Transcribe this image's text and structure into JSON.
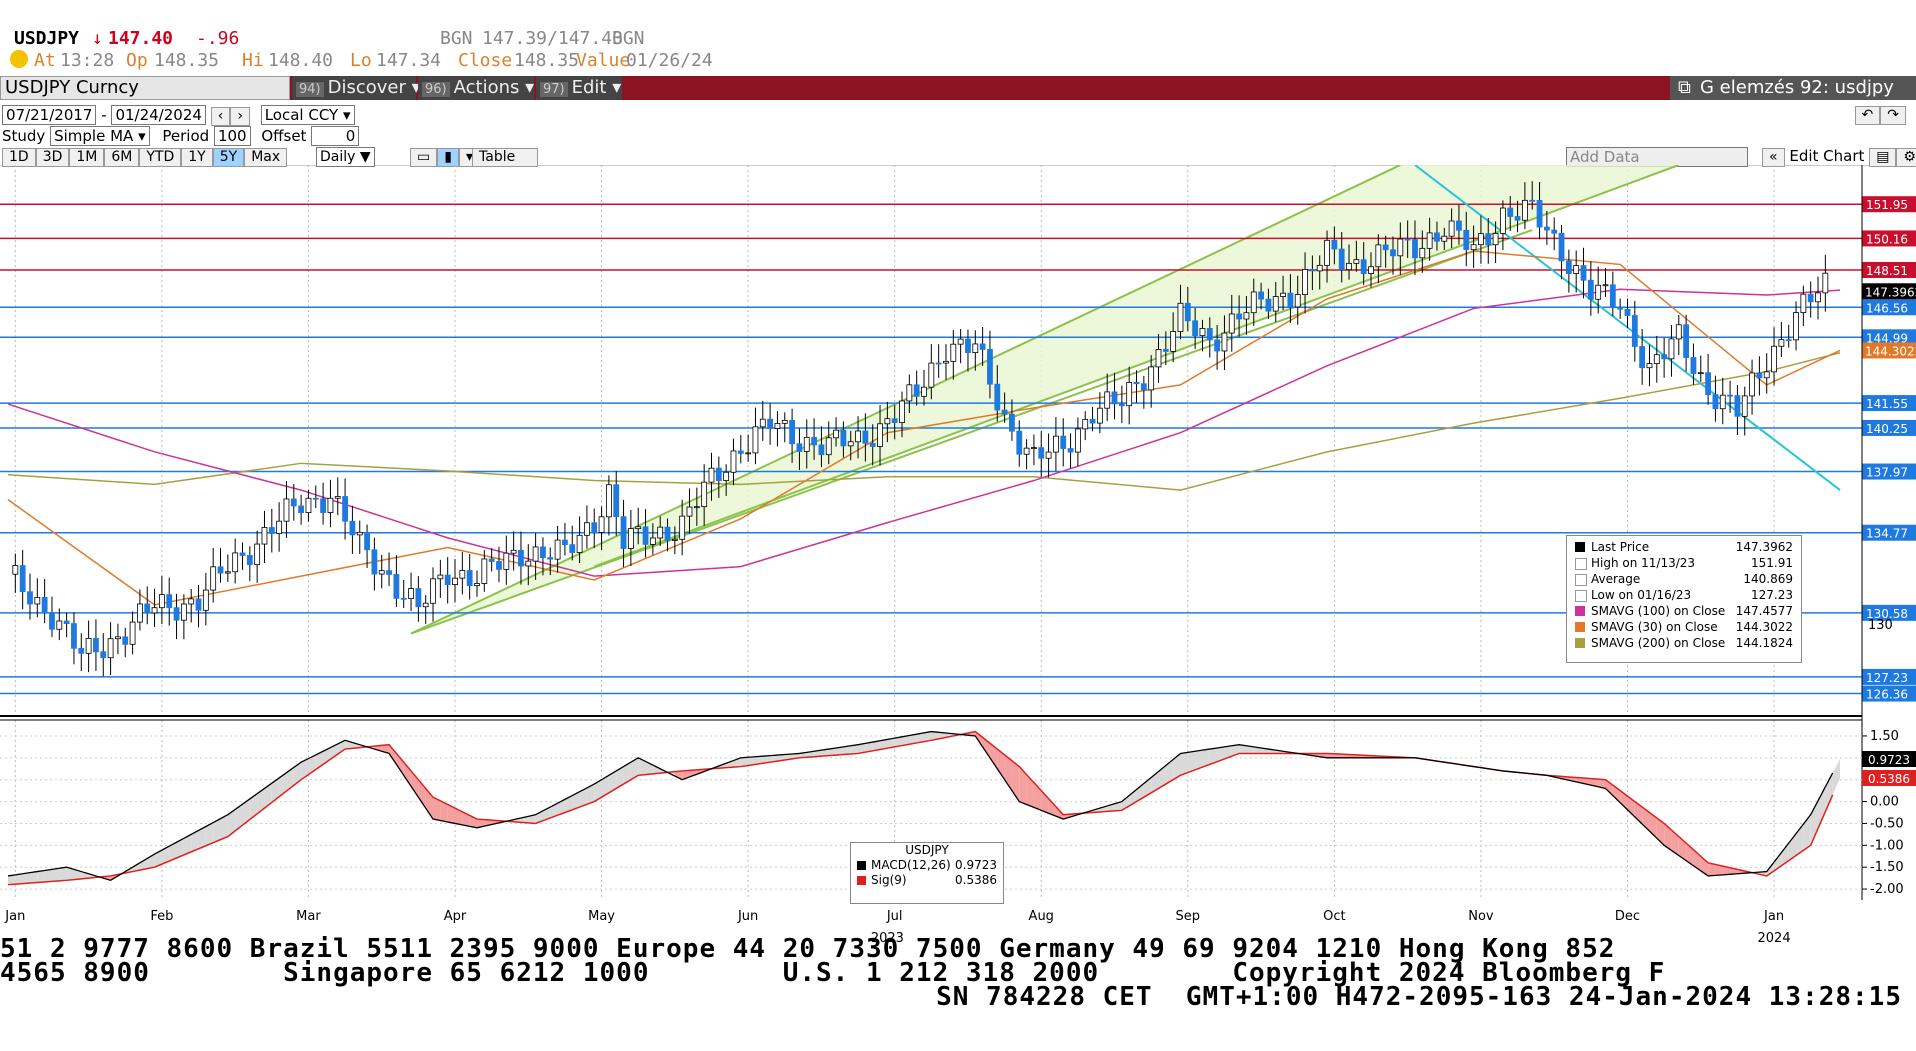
{
  "quote": {
    "ticker": "USDJPY",
    "arrow": "↓",
    "last": "147.40",
    "change": "-.96",
    "source": "BGN",
    "bid_ask": "147.39/147.40",
    "source2": "BGN",
    "at_label": "At",
    "at_time": "13:28",
    "op_label": "Op",
    "op_value": "148.35",
    "hi_label": "Hi",
    "hi_value": "148.40",
    "lo_label": "Lo",
    "lo_value": "147.34",
    "close_label": "Close",
    "close_value": "148.35",
    "value_label": "Value",
    "value_date": "01/26/24"
  },
  "toolbar": {
    "security": "USDJPY Curncy",
    "discover_num": "94)",
    "discover": "Discover",
    "actions_num": "96)",
    "actions": "Actions",
    "edit_num": "97)",
    "edit": "Edit",
    "ga_label": "G elemzés 92: usdjpy"
  },
  "controls": {
    "start_date": "07/21/2017",
    "end_date": "01/24/2024",
    "currency": "Local CCY",
    "study_label": "Study",
    "study_value": "Simple MA",
    "period_label": "Period",
    "period_value": "100",
    "offset_label": "Offset",
    "offset_value": "0",
    "ranges": [
      "1D",
      "3D",
      "1M",
      "6M",
      "YTD",
      "1Y",
      "5Y",
      "Max"
    ],
    "active_range": "5Y",
    "frequency": "Daily",
    "table": "Table",
    "add_data": "Add Data",
    "edit_chart": "Edit Chart"
  },
  "colors": {
    "up_candle": "#ffffff",
    "down_candle": "#1f7ae0",
    "sma100": "#cc3399",
    "sma30": "#e07a2a",
    "sma200": "#a8a040",
    "channel": "#8bc34a",
    "trendline": "#27c4d8",
    "resistance": "#c8102e",
    "support": "#1f7ae0",
    "macd": "#000000",
    "signal": "#e02020"
  },
  "chart_data": [
    {
      "type": "candlestick",
      "title": "USDJPY",
      "x_months": [
        "Jan",
        "Feb",
        "Mar",
        "Apr",
        "May",
        "Jun",
        "Jul",
        "Aug",
        "Sep",
        "Oct",
        "Nov",
        "Dec",
        "Jan"
      ],
      "year_labels": [
        "2023",
        "2024"
      ],
      "y_right_ticks": [
        "130"
      ],
      "horizontal_levels": [
        {
          "value": 151.95,
          "label": "151.95",
          "color": "resistance"
        },
        {
          "value": 150.16,
          "label": "150.16",
          "color": "resistance"
        },
        {
          "value": 148.51,
          "label": "148.51",
          "color": "resistance"
        },
        {
          "value": 146.56,
          "label": "146.56",
          "color": "support"
        },
        {
          "value": 144.99,
          "label": "144.99",
          "color": "support"
        },
        {
          "value": 141.55,
          "label": "141.55",
          "color": "support"
        },
        {
          "value": 140.25,
          "label": "140.25",
          "color": "support"
        },
        {
          "value": 137.97,
          "label": "137.97",
          "color": "support"
        },
        {
          "value": 134.77,
          "label": "134.77",
          "color": "support"
        },
        {
          "value": 130.58,
          "label": "130.58",
          "color": "support"
        },
        {
          "value": 127.23,
          "label": "127.23",
          "color": "support"
        },
        {
          "value": 126.36,
          "label": "126.36",
          "color": "support"
        }
      ],
      "price_tags": [
        {
          "value": 147.3962,
          "label": "147.3962",
          "color": "#000000"
        },
        {
          "value": 144.3022,
          "label": "144.3022",
          "color": "#e07a2a"
        }
      ],
      "series_close": [
        {
          "t": 0,
          "v": 132.6
        },
        {
          "t": 0.3,
          "v": 130.5
        },
        {
          "t": 0.5,
          "v": 128.3
        },
        {
          "t": 0.8,
          "v": 129.6
        },
        {
          "t": 1.0,
          "v": 130.9
        },
        {
          "t": 1.3,
          "v": 131.2
        },
        {
          "t": 1.5,
          "v": 133.0
        },
        {
          "t": 1.8,
          "v": 135.0
        },
        {
          "t": 2.0,
          "v": 136.3
        },
        {
          "t": 2.2,
          "v": 136.8
        },
        {
          "t": 2.4,
          "v": 134.0
        },
        {
          "t": 2.6,
          "v": 132.5
        },
        {
          "t": 2.8,
          "v": 130.7
        },
        {
          "t": 3.0,
          "v": 132.8
        },
        {
          "t": 3.2,
          "v": 132.4
        },
        {
          "t": 3.5,
          "v": 133.8
        },
        {
          "t": 3.8,
          "v": 133.6
        },
        {
          "t": 4.0,
          "v": 135.5
        },
        {
          "t": 4.1,
          "v": 136.9
        },
        {
          "t": 4.2,
          "v": 134.2
        },
        {
          "t": 4.4,
          "v": 134.7
        },
        {
          "t": 4.6,
          "v": 135.2
        },
        {
          "t": 4.8,
          "v": 137.5
        },
        {
          "t": 5.0,
          "v": 139.3
        },
        {
          "t": 5.2,
          "v": 140.4
        },
        {
          "t": 5.4,
          "v": 139.7
        },
        {
          "t": 5.6,
          "v": 139.3
        },
        {
          "t": 5.8,
          "v": 139.6
        },
        {
          "t": 6.0,
          "v": 140.6
        },
        {
          "t": 6.2,
          "v": 142.0
        },
        {
          "t": 6.4,
          "v": 144.6
        },
        {
          "t": 6.6,
          "v": 144.4
        },
        {
          "t": 6.8,
          "v": 140.8
        },
        {
          "t": 7.0,
          "v": 138.6
        },
        {
          "t": 7.2,
          "v": 139.2
        },
        {
          "t": 7.4,
          "v": 141.2
        },
        {
          "t": 7.6,
          "v": 141.5
        },
        {
          "t": 7.8,
          "v": 143.6
        },
        {
          "t": 8.0,
          "v": 145.9
        },
        {
          "t": 8.2,
          "v": 144.8
        },
        {
          "t": 8.4,
          "v": 146.2
        },
        {
          "t": 8.6,
          "v": 146.8
        },
        {
          "t": 8.8,
          "v": 147.6
        },
        {
          "t": 9.0,
          "v": 149.3
        },
        {
          "t": 9.2,
          "v": 148.9
        },
        {
          "t": 9.4,
          "v": 149.3
        },
        {
          "t": 9.6,
          "v": 149.8
        },
        {
          "t": 9.8,
          "v": 150.7
        },
        {
          "t": 10.0,
          "v": 149.5
        },
        {
          "t": 10.2,
          "v": 151.5
        },
        {
          "t": 10.4,
          "v": 151.5
        },
        {
          "t": 10.6,
          "v": 149.6
        },
        {
          "t": 10.8,
          "v": 147.3
        },
        {
          "t": 11.0,
          "v": 146.7
        },
        {
          "t": 11.2,
          "v": 143.3
        },
        {
          "t": 11.4,
          "v": 144.9
        },
        {
          "t": 11.6,
          "v": 142.3
        },
        {
          "t": 11.8,
          "v": 141.0
        },
        {
          "t": 12.0,
          "v": 143.9
        },
        {
          "t": 12.2,
          "v": 146.0
        },
        {
          "t": 12.4,
          "v": 147.8
        },
        {
          "t": 12.5,
          "v": 147.4
        }
      ],
      "sma100": [
        {
          "t": 0,
          "v": 141.5
        },
        {
          "t": 1.0,
          "v": 139.0
        },
        {
          "t": 2.0,
          "v": 137.0
        },
        {
          "t": 3.0,
          "v": 134.5
        },
        {
          "t": 4.0,
          "v": 132.5
        },
        {
          "t": 5.0,
          "v": 133.0
        },
        {
          "t": 6.0,
          "v": 135.3
        },
        {
          "t": 7.0,
          "v": 137.5
        },
        {
          "t": 8.0,
          "v": 140.0
        },
        {
          "t": 9.0,
          "v": 143.5
        },
        {
          "t": 10.0,
          "v": 146.5
        },
        {
          "t": 11.0,
          "v": 147.5
        },
        {
          "t": 12.0,
          "v": 147.2
        },
        {
          "t": 12.5,
          "v": 147.4577
        }
      ],
      "sma30": [
        {
          "t": 0,
          "v": 136.5
        },
        {
          "t": 1.0,
          "v": 131.0
        },
        {
          "t": 2.0,
          "v": 132.5
        },
        {
          "t": 3.0,
          "v": 134.0
        },
        {
          "t": 4.0,
          "v": 132.3
        },
        {
          "t": 5.0,
          "v": 135.5
        },
        {
          "t": 6.0,
          "v": 140.0
        },
        {
          "t": 7.0,
          "v": 141.3
        },
        {
          "t": 8.0,
          "v": 142.5
        },
        {
          "t": 9.0,
          "v": 147.0
        },
        {
          "t": 10.0,
          "v": 149.5
        },
        {
          "t": 11.0,
          "v": 148.8
        },
        {
          "t": 12.0,
          "v": 142.5
        },
        {
          "t": 12.5,
          "v": 144.3022
        }
      ],
      "sma200": [
        {
          "t": 0,
          "v": 137.8
        },
        {
          "t": 1.0,
          "v": 137.3
        },
        {
          "t": 2.0,
          "v": 138.4
        },
        {
          "t": 3.0,
          "v": 138.0
        },
        {
          "t": 4.0,
          "v": 137.5
        },
        {
          "t": 5.0,
          "v": 137.3
        },
        {
          "t": 6.0,
          "v": 137.7
        },
        {
          "t": 7.0,
          "v": 137.7
        },
        {
          "t": 8.0,
          "v": 137.0
        },
        {
          "t": 9.0,
          "v": 139.0
        },
        {
          "t": 10.0,
          "v": 140.5
        },
        {
          "t": 11.0,
          "v": 141.8
        },
        {
          "t": 12.0,
          "v": 143.2
        },
        {
          "t": 12.5,
          "v": 144.1824
        }
      ],
      "legend": {
        "rows": [
          {
            "label": "Last Price",
            "value": "147.3962",
            "color": "#000000"
          },
          {
            "label": "High on 11/13/23",
            "value": "151.91",
            "color": ""
          },
          {
            "label": "Average",
            "value": "140.869",
            "color": ""
          },
          {
            "label": "Low on 01/16/23",
            "value": "127.23",
            "color": ""
          },
          {
            "label": "SMAVG (100)  on Close",
            "value": "147.4577",
            "color": "#cc3399"
          },
          {
            "label": "SMAVG (30)  on Close",
            "value": "144.3022",
            "color": "#e07a2a"
          },
          {
            "label": "SMAVG (200)  on Close",
            "value": "144.1824",
            "color": "#a8a040"
          }
        ]
      },
      "ylim": [
        125.5,
        154
      ]
    },
    {
      "type": "line",
      "title": "USDJPY",
      "y_ticks": [
        "1.50",
        "1.00",
        "0.50",
        "0.00",
        "-0.50",
        "-1.00",
        "-1.50",
        "-2.00"
      ],
      "ylim": [
        -2.25,
        1.75
      ],
      "series": [
        {
          "name": "MACD(12,26)",
          "last": "0.9723",
          "values": [
            {
              "t": 0,
              "v": -1.7
            },
            {
              "t": 0.4,
              "v": -1.5
            },
            {
              "t": 0.7,
              "v": -1.8
            },
            {
              "t": 1.0,
              "v": -1.2
            },
            {
              "t": 1.5,
              "v": -0.3
            },
            {
              "t": 2.0,
              "v": 0.9
            },
            {
              "t": 2.3,
              "v": 1.4
            },
            {
              "t": 2.6,
              "v": 1.1
            },
            {
              "t": 2.9,
              "v": -0.4
            },
            {
              "t": 3.2,
              "v": -0.6
            },
            {
              "t": 3.6,
              "v": -0.3
            },
            {
              "t": 4.0,
              "v": 0.4
            },
            {
              "t": 4.3,
              "v": 1.0
            },
            {
              "t": 4.6,
              "v": 0.5
            },
            {
              "t": 5.0,
              "v": 1.0
            },
            {
              "t": 5.4,
              "v": 1.1
            },
            {
              "t": 5.8,
              "v": 1.3
            },
            {
              "t": 6.3,
              "v": 1.6
            },
            {
              "t": 6.6,
              "v": 1.5
            },
            {
              "t": 6.9,
              "v": 0.0
            },
            {
              "t": 7.2,
              "v": -0.4
            },
            {
              "t": 7.6,
              "v": 0.0
            },
            {
              "t": 8.0,
              "v": 1.1
            },
            {
              "t": 8.4,
              "v": 1.3
            },
            {
              "t": 9.0,
              "v": 1.0
            },
            {
              "t": 9.6,
              "v": 1.0
            },
            {
              "t": 10.2,
              "v": 0.7
            },
            {
              "t": 10.5,
              "v": 0.6
            },
            {
              "t": 10.9,
              "v": 0.3
            },
            {
              "t": 11.3,
              "v": -1.0
            },
            {
              "t": 11.6,
              "v": -1.7
            },
            {
              "t": 12.0,
              "v": -1.6
            },
            {
              "t": 12.3,
              "v": -0.3
            },
            {
              "t": 12.5,
              "v": 0.9723
            }
          ]
        },
        {
          "name": "Sig(9)",
          "last": "0.5386",
          "values": [
            {
              "t": 0,
              "v": -1.9
            },
            {
              "t": 0.4,
              "v": -1.8
            },
            {
              "t": 0.7,
              "v": -1.7
            },
            {
              "t": 1.0,
              "v": -1.5
            },
            {
              "t": 1.5,
              "v": -0.8
            },
            {
              "t": 2.0,
              "v": 0.5
            },
            {
              "t": 2.3,
              "v": 1.2
            },
            {
              "t": 2.6,
              "v": 1.3
            },
            {
              "t": 2.9,
              "v": 0.1
            },
            {
              "t": 3.2,
              "v": -0.4
            },
            {
              "t": 3.6,
              "v": -0.5
            },
            {
              "t": 4.0,
              "v": 0.0
            },
            {
              "t": 4.3,
              "v": 0.6
            },
            {
              "t": 4.6,
              "v": 0.7
            },
            {
              "t": 5.0,
              "v": 0.8
            },
            {
              "t": 5.4,
              "v": 1.0
            },
            {
              "t": 5.8,
              "v": 1.1
            },
            {
              "t": 6.3,
              "v": 1.4
            },
            {
              "t": 6.6,
              "v": 1.6
            },
            {
              "t": 6.9,
              "v": 0.8
            },
            {
              "t": 7.2,
              "v": -0.3
            },
            {
              "t": 7.6,
              "v": -0.2
            },
            {
              "t": 8.0,
              "v": 0.6
            },
            {
              "t": 8.4,
              "v": 1.1
            },
            {
              "t": 9.0,
              "v": 1.1
            },
            {
              "t": 9.6,
              "v": 1.0
            },
            {
              "t": 10.2,
              "v": 0.7
            },
            {
              "t": 10.5,
              "v": 0.6
            },
            {
              "t": 10.9,
              "v": 0.5
            },
            {
              "t": 11.3,
              "v": -0.5
            },
            {
              "t": 11.6,
              "v": -1.4
            },
            {
              "t": 12.0,
              "v": -1.7
            },
            {
              "t": 12.3,
              "v": -1.0
            },
            {
              "t": 12.5,
              "v": 0.5386
            }
          ]
        }
      ]
    }
  ],
  "ticker_tape": {
    "line1": "51 2 9777 8600 Brazil 5511 2395 9000 Europe 44 20 7330 7500 Germany 49 69 9204 1210 Hong Kong 852",
    "line2": "4565 8900        Singapore 65 6212 1000        U.S. 1 212 318 2000        Copyright 2024 Bloomberg F",
    "line3": "SN 784228 CET  GMT+1:00 H472-2095-163 24-Jan-2024 13:28:15"
  }
}
